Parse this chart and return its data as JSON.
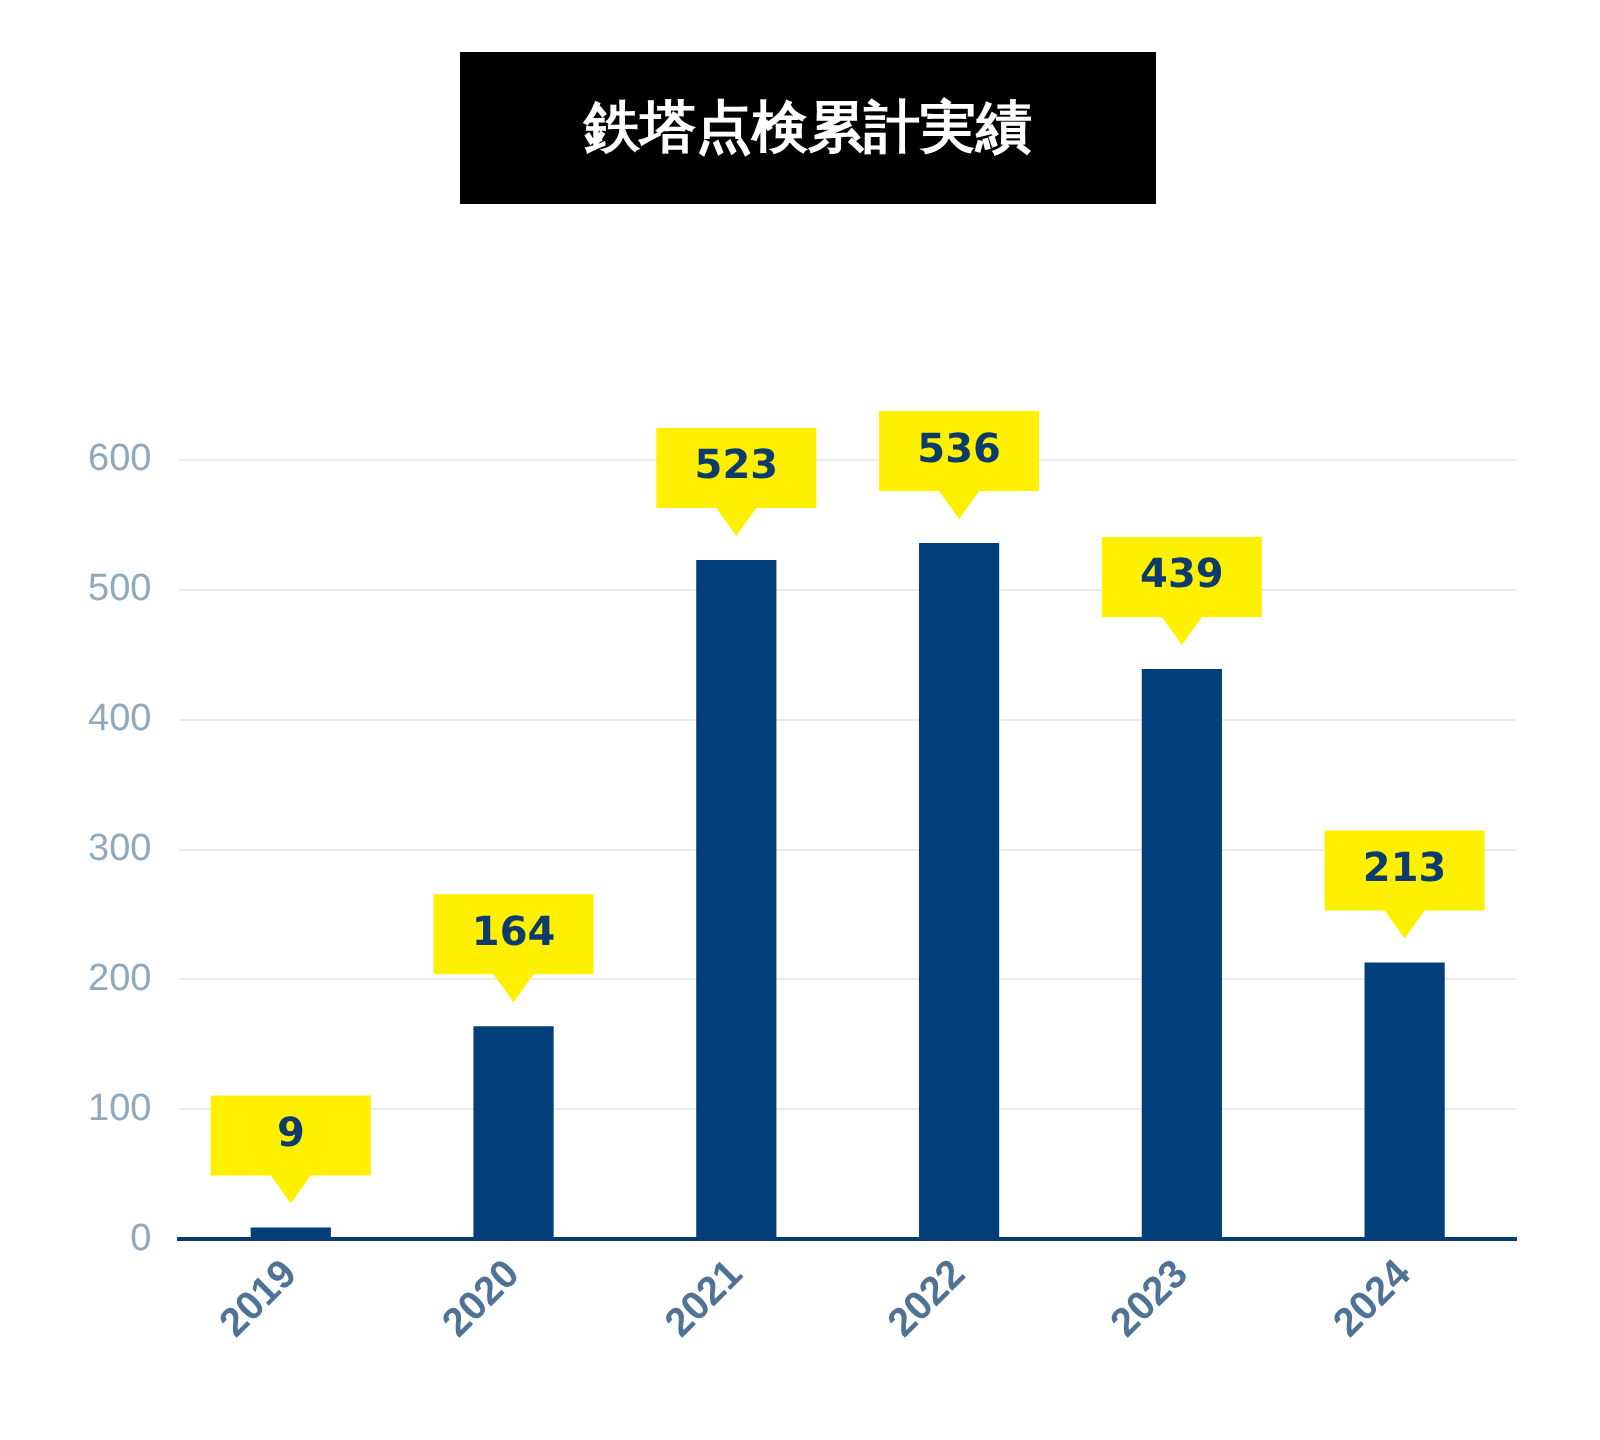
{
  "chart_data": {
    "type": "bar",
    "title": "鉄塔点検累計実績",
    "categories": [
      "2019",
      "2020",
      "2021",
      "2022",
      "2023",
      "2024"
    ],
    "values": [
      9,
      164,
      523,
      536,
      439,
      213
    ],
    "color": "#003f7a",
    "ylim": [
      0,
      600
    ],
    "yticks": [
      0,
      100,
      200,
      300,
      400,
      500,
      600
    ],
    "grid": "y",
    "data_labels": true
  }
}
